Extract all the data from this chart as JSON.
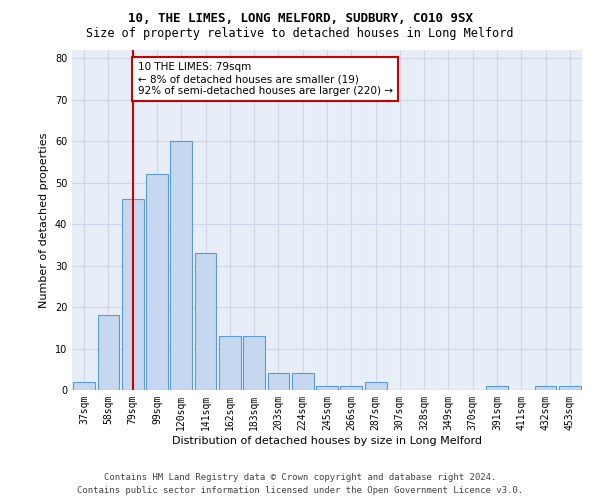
{
  "title_line1": "10, THE LIMES, LONG MELFORD, SUDBURY, CO10 9SX",
  "title_line2": "Size of property relative to detached houses in Long Melford",
  "xlabel": "Distribution of detached houses by size in Long Melford",
  "ylabel": "Number of detached properties",
  "categories": [
    "37sqm",
    "58sqm",
    "79sqm",
    "99sqm",
    "120sqm",
    "141sqm",
    "162sqm",
    "183sqm",
    "203sqm",
    "224sqm",
    "245sqm",
    "266sqm",
    "287sqm",
    "307sqm",
    "328sqm",
    "349sqm",
    "370sqm",
    "391sqm",
    "411sqm",
    "432sqm",
    "453sqm"
  ],
  "values": [
    2,
    18,
    46,
    52,
    60,
    33,
    13,
    13,
    4,
    4,
    1,
    1,
    2,
    0,
    0,
    0,
    0,
    1,
    0,
    1,
    1
  ],
  "bar_color": "#c5d8f0",
  "bar_edge_color": "#5b9bd5",
  "vline_x_index": 2,
  "vline_color": "#cc0000",
  "annotation_text": "10 THE LIMES: 79sqm\n← 8% of detached houses are smaller (19)\n92% of semi-detached houses are larger (220) →",
  "annotation_box_color": "#ffffff",
  "annotation_box_edge": "#cc0000",
  "ylim": [
    0,
    82
  ],
  "yticks": [
    0,
    10,
    20,
    30,
    40,
    50,
    60,
    70,
    80
  ],
  "grid_color": "#d0d8e8",
  "background_color": "#e8eef8",
  "footer_line1": "Contains HM Land Registry data © Crown copyright and database right 2024.",
  "footer_line2": "Contains public sector information licensed under the Open Government Licence v3.0.",
  "title_fontsize": 9,
  "subtitle_fontsize": 8.5,
  "xlabel_fontsize": 8,
  "ylabel_fontsize": 8,
  "tick_fontsize": 7,
  "annotation_fontsize": 7.5,
  "footer_fontsize": 6.5
}
